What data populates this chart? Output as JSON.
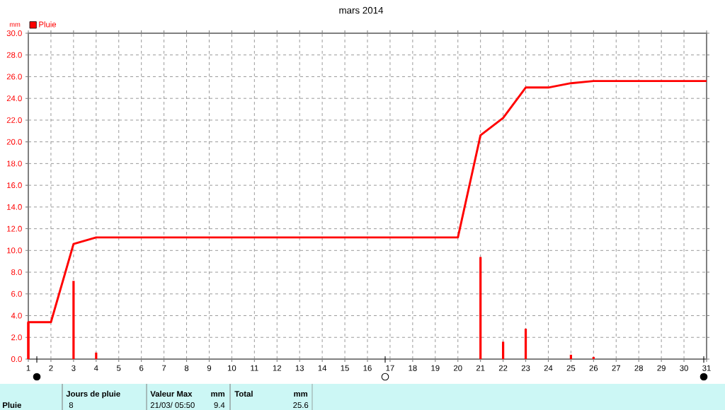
{
  "chart_data": {
    "type": "bar",
    "title": "mars 2014",
    "ylabel": "mm",
    "series": [
      {
        "name": "Pluie",
        "color": "#ff0000",
        "x": [
          1,
          3,
          4,
          21,
          22,
          23,
          25,
          26
        ],
        "values": [
          3.4,
          7.2,
          0.6,
          9.4,
          1.6,
          2.8,
          0.4,
          0.2
        ]
      },
      {
        "type": "line",
        "color": "#ff0000",
        "x": [
          1,
          1,
          2,
          3,
          4,
          20,
          21,
          22,
          23,
          24,
          25,
          26,
          31
        ],
        "values": [
          0,
          3.4,
          3.4,
          10.6,
          11.2,
          11.2,
          20.6,
          22.2,
          25.0,
          25.0,
          25.4,
          25.6,
          25.6
        ]
      }
    ],
    "xlim": [
      1,
      31
    ],
    "xticks": [
      1,
      2,
      3,
      4,
      5,
      6,
      7,
      8,
      9,
      10,
      11,
      12,
      13,
      14,
      15,
      16,
      17,
      18,
      19,
      20,
      21,
      22,
      23,
      24,
      25,
      26,
      27,
      28,
      29,
      30,
      31
    ],
    "ylim": [
      0,
      30
    ],
    "yticks": [
      {
        "value": 0,
        "label": "0.0"
      },
      {
        "value": 2,
        "label": "2.0"
      },
      {
        "value": 4,
        "label": "4.0"
      },
      {
        "value": 6,
        "label": "6.0"
      },
      {
        "value": 8,
        "label": "8.0"
      },
      {
        "value": 10,
        "label": "10.0"
      },
      {
        "value": 12,
        "label": "12.0"
      },
      {
        "value": 14,
        "label": "14.0"
      },
      {
        "value": 16,
        "label": "16.0"
      },
      {
        "value": 18,
        "label": "18.0"
      },
      {
        "value": 20,
        "label": "20.0"
      },
      {
        "value": 22,
        "label": "22.0"
      },
      {
        "value": 24,
        "label": "24.0"
      },
      {
        "value": 26,
        "label": "26.0"
      },
      {
        "value": 28,
        "label": "28.0"
      },
      {
        "value": 30,
        "label": "30.0"
      }
    ],
    "grid": true,
    "legend": "top left",
    "annotations": [
      "Pluie",
      "Jours de pluie",
      "8",
      "Valeur Max",
      "mm",
      "21/03/ 05:50",
      "9.4",
      "Total",
      "mm",
      "25.6"
    ]
  }
}
